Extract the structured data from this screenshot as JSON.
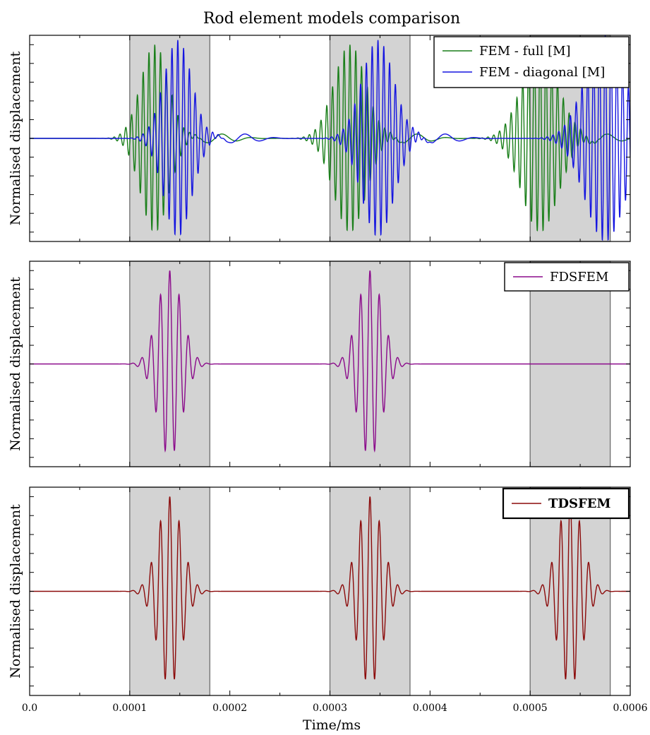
{
  "title": "Rod element models comparison",
  "xlabel": "Time/ms",
  "chart_data": [
    {
      "type": "line",
      "ylabel": "Normalised displacement",
      "xlim": [
        0,
        0.0006
      ],
      "ylim": [
        -1.1,
        1.1
      ],
      "grid": false,
      "legend_position": "top-right",
      "shaded_windows": [
        [
          0.0001,
          0.00018
        ],
        [
          0.0003,
          0.00038
        ],
        [
          0.0005,
          0.00058
        ]
      ],
      "series": [
        {
          "name": "FEM - full [M]",
          "color": "#1a7f1a",
          "packets": [
            {
              "center": 0.000125,
              "amplitude": 1.0,
              "width": 1.4e-05,
              "period": 5.8e-06
            },
            {
              "center": 0.00032,
              "amplitude": 1.0,
              "width": 1.6e-05,
              "period": 5.8e-06
            },
            {
              "center": 0.00051,
              "amplitude": 1.0,
              "width": 1.8e-05,
              "period": 5.8e-06
            }
          ],
          "coda_amplitude": 0.05
        },
        {
          "name": "FEM - diagonal [M]",
          "color": "#1515e0",
          "packets": [
            {
              "center": 0.000148,
              "amplitude": 1.05,
              "width": 1.4e-05,
              "period": 5.8e-06
            },
            {
              "center": 0.000348,
              "amplitude": 1.05,
              "width": 1.6e-05,
              "period": 5.8e-06
            },
            {
              "center": 0.000575,
              "amplitude": 1.1,
              "width": 2e-05,
              "period": 5.8e-06
            }
          ],
          "coda_amplitude": 0.05
        }
      ]
    },
    {
      "type": "line",
      "ylabel": "Normalised displacement",
      "xlim": [
        0,
        0.0006
      ],
      "ylim": [
        -1.1,
        1.1
      ],
      "grid": false,
      "legend_position": "top-right",
      "shaded_windows": [
        [
          0.0001,
          0.00018
        ],
        [
          0.0003,
          0.00038
        ],
        [
          0.0005,
          0.00058
        ]
      ],
      "series": [
        {
          "name": "FDSFEM",
          "color": "#8b0a8b",
          "packets": [
            {
              "center": 0.00014,
              "amplitude": 1.0,
              "width": 1.2e-05,
              "period": 9.3e-06
            },
            {
              "center": 0.00034,
              "amplitude": 1.0,
              "width": 1.2e-05,
              "period": 9.3e-06
            }
          ],
          "coda_amplitude": 0
        }
      ]
    },
    {
      "type": "line",
      "ylabel": "Normalised displacement",
      "xlim": [
        0,
        0.0006
      ],
      "ylim": [
        -1.1,
        1.1
      ],
      "grid": false,
      "legend_position": "top-right",
      "shaded_windows": [
        [
          0.0001,
          0.00018
        ],
        [
          0.0003,
          0.00038
        ],
        [
          0.0005,
          0.00058
        ]
      ],
      "series": [
        {
          "name": "TDSFEM",
          "color": "#8b0a0a",
          "packets": [
            {
              "center": 0.00014,
              "amplitude": 1.0,
              "width": 1.2e-05,
              "period": 9.3e-06
            },
            {
              "center": 0.00034,
              "amplitude": 1.0,
              "width": 1.2e-05,
              "period": 9.3e-06
            },
            {
              "center": 0.00054,
              "amplitude": 1.0,
              "width": 1.2e-05,
              "period": 9.3e-06
            }
          ],
          "coda_amplitude": 0
        }
      ]
    }
  ],
  "x_tick_labels": [
    "0.0",
    "0.0001",
    "0.0002",
    "0.0003",
    "0.0004",
    "0.0005",
    "0.0006"
  ],
  "x_tick_values": [
    0,
    0.0001,
    0.0002,
    0.0003,
    0.0004,
    0.0005,
    0.0006
  ]
}
